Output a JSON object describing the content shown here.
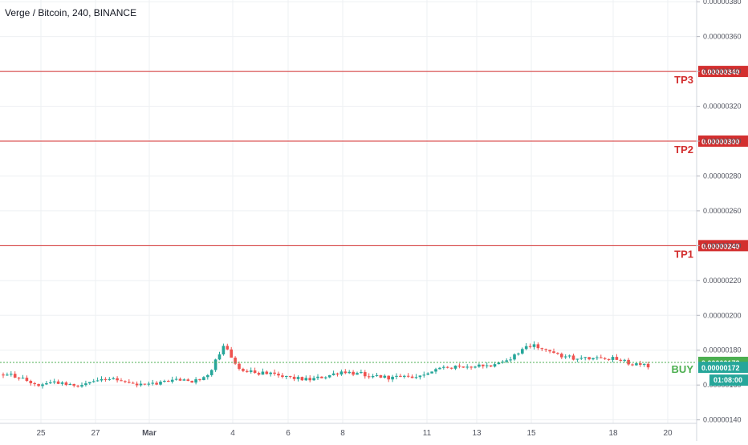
{
  "header": {
    "title": "Verge / Bitcoin, 240, BINANCE"
  },
  "colors": {
    "up": "#26a69a",
    "down": "#ef5350",
    "level_line": "#d32f2f",
    "buy_line": "#4caf50",
    "current_price_tag": "#26a69a",
    "grid": "#eef0f3"
  },
  "chart_data": {
    "type": "candlestick",
    "ylim": [
      1.38e-06,
      3.81e-06
    ],
    "y_ticks": [
      "0.00000380",
      "0.00000360",
      "0.00000340",
      "0.00000320",
      "0.00000300",
      "0.00000280",
      "0.00000260",
      "0.00000240",
      "0.00000220",
      "0.00000200",
      "0.00000180",
      "0.00000160",
      "0.00000140"
    ],
    "x_ticks": [
      "25",
      "27",
      "Mar",
      "4",
      "6",
      "8",
      "11",
      "13",
      "15",
      "18",
      "20"
    ],
    "levels": [
      {
        "name": "TP3",
        "value": 3.4e-06,
        "tag": "0.00000340"
      },
      {
        "name": "TP2",
        "value": 3e-06,
        "tag": "0.00000300"
      },
      {
        "name": "TP1",
        "value": 2.4e-06,
        "tag": "0.00000240"
      },
      {
        "name": "BUY",
        "value": 1.73e-06,
        "tag": "0.00000173"
      }
    ],
    "last_price": {
      "value": 1.72e-06,
      "tag": "0.00000172",
      "countdown": "01:08:00"
    },
    "anchors": [
      [
        1.66e-06,
        1.67e-06
      ],
      [
        1.64e-06,
        1.63e-06
      ],
      [
        1.6e-06,
        1.61e-06
      ],
      [
        1.62e-06,
        1.63e-06
      ],
      [
        1.6e-06,
        1.59e-06
      ],
      [
        1.61e-06,
        1.62e-06
      ],
      [
        1.64e-06,
        1.63e-06
      ],
      [
        1.62e-06,
        1.61e-06
      ],
      [
        1.6e-06,
        1.59e-06
      ],
      [
        1.61e-06,
        1.62e-06
      ],
      [
        1.63e-06,
        1.64e-06
      ],
      [
        1.62e-06,
        1.63e-06
      ],
      [
        1.64e-06,
        1.65e-06
      ],
      [
        1.83e-06,
        1.72e-06
      ],
      [
        1.68e-06,
        1.67e-06
      ],
      [
        1.67e-06,
        1.66e-06
      ],
      [
        1.66e-06,
        1.65e-06
      ],
      [
        1.64e-06,
        1.63e-06
      ],
      [
        1.63e-06,
        1.64e-06
      ],
      [
        1.65e-06,
        1.66e-06
      ],
      [
        1.68e-06,
        1.69e-06
      ],
      [
        1.66e-06,
        1.67e-06
      ],
      [
        1.65e-06,
        1.66e-06
      ],
      [
        1.64e-06,
        1.65e-06
      ],
      [
        1.65e-06,
        1.64e-06
      ],
      [
        1.66e-06,
        1.67e-06
      ],
      [
        1.71e-06,
        1.72e-06
      ],
      [
        1.7e-06,
        1.71e-06
      ],
      [
        1.72e-06,
        1.7e-06
      ],
      [
        1.71e-06,
        1.72e-06
      ],
      [
        1.76e-06,
        1.77e-06
      ],
      [
        1.83e-06,
        1.85e-06
      ],
      [
        1.81e-06,
        1.8e-06
      ],
      [
        1.76e-06,
        1.75e-06
      ],
      [
        1.75e-06,
        1.74e-06
      ],
      [
        1.76e-06,
        1.77e-06
      ],
      [
        1.75e-06,
        1.74e-06
      ],
      [
        1.72e-06,
        1.71e-06
      ],
      [
        1.71e-06,
        1.72e-06
      ]
    ]
  }
}
